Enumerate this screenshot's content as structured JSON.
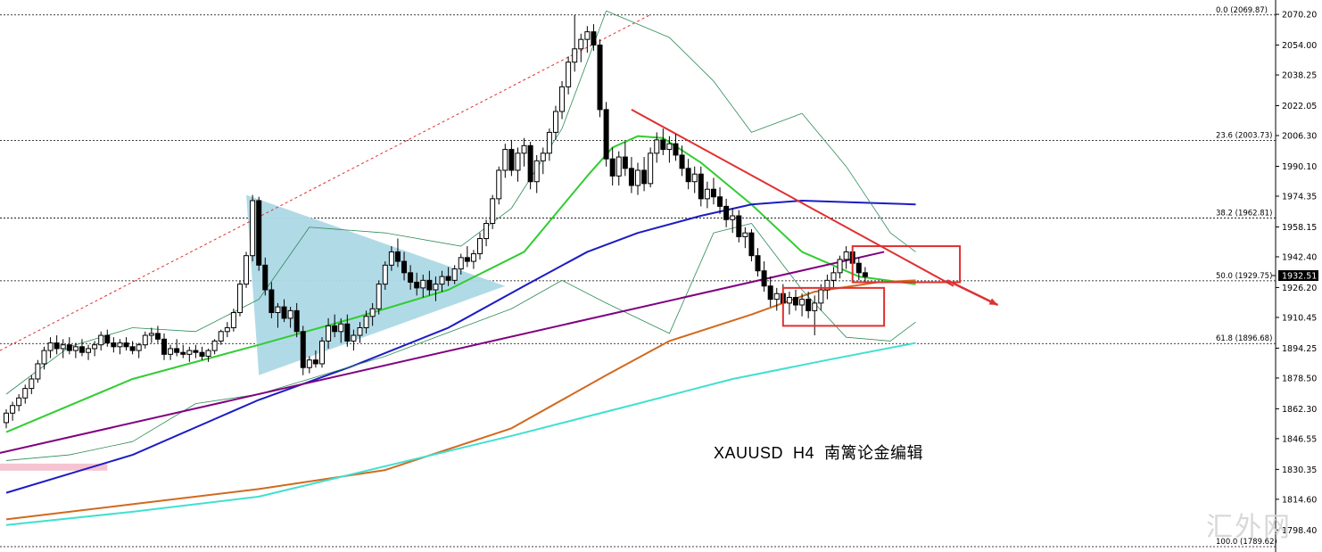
{
  "chart_data": {
    "type": "candlestick",
    "symbol": "XAUUSD",
    "timeframe": "H4",
    "caption": "XAUUSD  H4  南篱论金编辑",
    "watermark": "汇外网",
    "ylim": [
      1789.62,
      2074
    ],
    "y_ticks": [
      "2070.20",
      "2054.00",
      "2038.25",
      "2022.05",
      "2006.30",
      "1990.10",
      "1974.35",
      "1958.15",
      "1942.40",
      "1926.20",
      "1910.45",
      "1894.25",
      "1878.50",
      "1862.30",
      "1846.55",
      "1830.35",
      "1814.60",
      "1798.40"
    ],
    "current_price": "1932.51",
    "fibonacci": [
      {
        "label": "0.0 (2069.87)",
        "price": 2069.87
      },
      {
        "label": "23.6 (2003.73)",
        "price": 2003.73
      },
      {
        "label": "38.2 (1962.81)",
        "price": 1962.81
      },
      {
        "label": "50.0 (1929.75)",
        "price": 1929.75
      },
      {
        "label": "61.8 (1896.68)",
        "price": 1896.68
      },
      {
        "label": "100.0 (1789.62)",
        "price": 1789.62
      }
    ],
    "bar_count": 150,
    "candles": [
      [
        1855,
        1862,
        1852,
        1860
      ],
      [
        1860,
        1866,
        1856,
        1864
      ],
      [
        1864,
        1870,
        1861,
        1868
      ],
      [
        1868,
        1875,
        1865,
        1873
      ],
      [
        1873,
        1880,
        1870,
        1878
      ],
      [
        1878,
        1888,
        1876,
        1886
      ],
      [
        1886,
        1895,
        1883,
        1893
      ],
      [
        1893,
        1900,
        1889,
        1897
      ],
      [
        1897,
        1901,
        1891,
        1894
      ],
      [
        1894,
        1899,
        1889,
        1896
      ],
      [
        1896,
        1900,
        1891,
        1893
      ],
      [
        1893,
        1897,
        1889,
        1895
      ],
      [
        1895,
        1899,
        1890,
        1892
      ],
      [
        1892,
        1896,
        1888,
        1894
      ],
      [
        1894,
        1898,
        1890,
        1896
      ],
      [
        1896,
        1903,
        1893,
        1901
      ],
      [
        1901,
        1904,
        1895,
        1897
      ],
      [
        1897,
        1900,
        1892,
        1895
      ],
      [
        1895,
        1899,
        1891,
        1897
      ],
      [
        1897,
        1900,
        1893,
        1895
      ],
      [
        1895,
        1898,
        1891,
        1893
      ],
      [
        1893,
        1897,
        1889,
        1896
      ],
      [
        1896,
        1903,
        1894,
        1901
      ],
      [
        1901,
        1905,
        1897,
        1902
      ],
      [
        1902,
        1906,
        1897,
        1899
      ],
      [
        1899,
        1902,
        1888,
        1891
      ],
      [
        1891,
        1896,
        1888,
        1894
      ],
      [
        1894,
        1899,
        1890,
        1892
      ],
      [
        1892,
        1896,
        1889,
        1891
      ],
      [
        1891,
        1895,
        1887,
        1893
      ],
      [
        1893,
        1896,
        1889,
        1892
      ],
      [
        1892,
        1895,
        1888,
        1890
      ],
      [
        1890,
        1894,
        1887,
        1893
      ],
      [
        1893,
        1899,
        1891,
        1898
      ],
      [
        1898,
        1904,
        1896,
        1903
      ],
      [
        1903,
        1908,
        1900,
        1905
      ],
      [
        1905,
        1915,
        1903,
        1913
      ],
      [
        1913,
        1930,
        1911,
        1928
      ],
      [
        1928,
        1945,
        1926,
        1943
      ],
      [
        1943,
        1975,
        1940,
        1972
      ],
      [
        1972,
        1974,
        1935,
        1938
      ],
      [
        1938,
        1942,
        1922,
        1925
      ],
      [
        1925,
        1929,
        1910,
        1913
      ],
      [
        1913,
        1918,
        1905,
        1916
      ],
      [
        1916,
        1920,
        1908,
        1910
      ],
      [
        1910,
        1916,
        1905,
        1914
      ],
      [
        1914,
        1918,
        1900,
        1903
      ],
      [
        1903,
        1906,
        1880,
        1884
      ],
      [
        1884,
        1890,
        1881,
        1888
      ],
      [
        1888,
        1893,
        1884,
        1886
      ],
      [
        1886,
        1900,
        1884,
        1898
      ],
      [
        1898,
        1910,
        1894,
        1906
      ],
      [
        1906,
        1912,
        1900,
        1903
      ],
      [
        1903,
        1910,
        1897,
        1907
      ],
      [
        1907,
        1912,
        1895,
        1898
      ],
      [
        1898,
        1904,
        1893,
        1901
      ],
      [
        1901,
        1908,
        1897,
        1905
      ],
      [
        1905,
        1914,
        1902,
        1911
      ],
      [
        1911,
        1918,
        1906,
        1915
      ],
      [
        1915,
        1930,
        1912,
        1928
      ],
      [
        1928,
        1940,
        1925,
        1938
      ],
      [
        1938,
        1948,
        1935,
        1945
      ],
      [
        1945,
        1952,
        1937,
        1940
      ],
      [
        1940,
        1945,
        1930,
        1934
      ],
      [
        1934,
        1938,
        1925,
        1929
      ],
      [
        1929,
        1934,
        1922,
        1926
      ],
      [
        1926,
        1933,
        1921,
        1930
      ],
      [
        1930,
        1935,
        1922,
        1925
      ],
      [
        1925,
        1932,
        1919,
        1928
      ],
      [
        1928,
        1935,
        1924,
        1932
      ],
      [
        1932,
        1937,
        1927,
        1930
      ],
      [
        1930,
        1938,
        1928,
        1936
      ],
      [
        1936,
        1944,
        1933,
        1942
      ],
      [
        1942,
        1948,
        1937,
        1940
      ],
      [
        1940,
        1946,
        1936,
        1944
      ],
      [
        1944,
        1955,
        1941,
        1952
      ],
      [
        1952,
        1962,
        1948,
        1960
      ],
      [
        1960,
        1975,
        1957,
        1973
      ],
      [
        1973,
        1990,
        1970,
        1988
      ],
      [
        1988,
        2002,
        1984,
        1999
      ],
      [
        1999,
        2004,
        1985,
        1988
      ],
      [
        1988,
        2000,
        1982,
        1997
      ],
      [
        1997,
        2005,
        1990,
        2001
      ],
      [
        2001,
        2003,
        1978,
        1982
      ],
      [
        1982,
        1996,
        1976,
        1993
      ],
      [
        1993,
        2000,
        1986,
        1997
      ],
      [
        1997,
        2010,
        1993,
        2008
      ],
      [
        2008,
        2022,
        2004,
        2019
      ],
      [
        2019,
        2035,
        2015,
        2032
      ],
      [
        2032,
        2048,
        2028,
        2045
      ],
      [
        2045,
        2070,
        2040,
        2052
      ],
      [
        2052,
        2060,
        2045,
        2057
      ],
      [
        2057,
        2064,
        2050,
        2061
      ],
      [
        2061,
        2065,
        2051,
        2054
      ],
      [
        2054,
        2057,
        2016,
        2020
      ],
      [
        2020,
        2024,
        1990,
        1994
      ],
      [
        1994,
        2000,
        1980,
        1985
      ],
      [
        1985,
        1998,
        1980,
        1995
      ],
      [
        1995,
        2003,
        1985,
        1989
      ],
      [
        1989,
        1995,
        1976,
        1980
      ],
      [
        1980,
        1992,
        1975,
        1988
      ],
      [
        1988,
        1995,
        1977,
        1981
      ],
      [
        1981,
        2000,
        1979,
        1997
      ],
      [
        1997,
        2008,
        1992,
        2004
      ],
      [
        2004,
        2010,
        1996,
        1999
      ],
      [
        1999,
        2006,
        1992,
        2002
      ],
      [
        2002,
        2007,
        1993,
        1996
      ],
      [
        1996,
        2001,
        1985,
        1989
      ],
      [
        1989,
        1994,
        1978,
        1982
      ],
      [
        1982,
        1990,
        1976,
        1986
      ],
      [
        1986,
        1990,
        1969,
        1973
      ],
      [
        1973,
        1982,
        1968,
        1978
      ],
      [
        1978,
        1984,
        1970,
        1974
      ],
      [
        1974,
        1979,
        1965,
        1969
      ],
      [
        1969,
        1973,
        1958,
        1962
      ],
      [
        1962,
        1968,
        1955,
        1964
      ],
      [
        1964,
        1967,
        1950,
        1953
      ],
      [
        1953,
        1958,
        1947,
        1955
      ],
      [
        1955,
        1957,
        1940,
        1943
      ],
      [
        1943,
        1947,
        1932,
        1935
      ],
      [
        1935,
        1940,
        1924,
        1927
      ],
      [
        1927,
        1932,
        1916,
        1920
      ],
      [
        1920,
        1926,
        1914,
        1923
      ],
      [
        1923,
        1928,
        1916,
        1918
      ],
      [
        1918,
        1924,
        1912,
        1921
      ],
      [
        1921,
        1925,
        1914,
        1917
      ],
      [
        1917,
        1923,
        1911,
        1920
      ],
      [
        1920,
        1924,
        1910,
        1914
      ],
      [
        1914,
        1922,
        1901,
        1918
      ],
      [
        1918,
        1928,
        1914,
        1925
      ],
      [
        1925,
        1933,
        1920,
        1930
      ],
      [
        1930,
        1937,
        1926,
        1934
      ],
      [
        1934,
        1943,
        1931,
        1941
      ],
      [
        1941,
        1948,
        1936,
        1945
      ],
      [
        1945,
        1947,
        1936,
        1939
      ],
      [
        1939,
        1942,
        1930,
        1934
      ],
      [
        1934,
        1937,
        1929,
        1932
      ]
    ],
    "indicators": [
      {
        "name": "MA-fast",
        "color": "#32cd32",
        "points": [
          [
            0,
            1850
          ],
          [
            20,
            1878
          ],
          [
            40,
            1896
          ],
          [
            55,
            1910
          ],
          [
            70,
            1925
          ],
          [
            82,
            1945
          ],
          [
            92,
            1985
          ],
          [
            96,
            2000
          ],
          [
            100,
            2006
          ],
          [
            104,
            2005
          ],
          [
            110,
            1992
          ],
          [
            118,
            1970
          ],
          [
            126,
            1945
          ],
          [
            135,
            1932
          ],
          [
            144,
            1928
          ]
        ]
      },
      {
        "name": "MA-blue",
        "color": "#1c1cc4",
        "points": [
          [
            0,
            1818
          ],
          [
            20,
            1838
          ],
          [
            40,
            1867
          ],
          [
            55,
            1885
          ],
          [
            70,
            1905
          ],
          [
            82,
            1927
          ],
          [
            92,
            1945
          ],
          [
            100,
            1955
          ],
          [
            110,
            1964
          ],
          [
            118,
            1970
          ],
          [
            126,
            1972
          ],
          [
            135,
            1971
          ],
          [
            144,
            1970
          ]
        ]
      },
      {
        "name": "MA-orange",
        "color": "#d2691e",
        "points": [
          [
            0,
            1804
          ],
          [
            20,
            1812
          ],
          [
            40,
            1820
          ],
          [
            60,
            1830
          ],
          [
            80,
            1852
          ],
          [
            95,
            1880
          ],
          [
            105,
            1898
          ],
          [
            118,
            1912
          ],
          [
            128,
            1924
          ],
          [
            138,
            1929
          ],
          [
            144,
            1930
          ]
        ]
      },
      {
        "name": "MA-cyan",
        "color": "#40e0d0",
        "points": [
          [
            0,
            1801
          ],
          [
            20,
            1808
          ],
          [
            40,
            1816
          ],
          [
            60,
            1832
          ],
          [
            80,
            1848
          ],
          [
            100,
            1865
          ],
          [
            115,
            1878
          ],
          [
            130,
            1888
          ],
          [
            144,
            1897
          ]
        ]
      },
      {
        "name": "BB-upper",
        "color": "#2e8b57",
        "points": [
          [
            0,
            1870
          ],
          [
            10,
            1895
          ],
          [
            20,
            1905
          ],
          [
            30,
            1903
          ],
          [
            40,
            1920
          ],
          [
            48,
            1958
          ],
          [
            60,
            1955
          ],
          [
            72,
            1948
          ],
          [
            80,
            1968
          ],
          [
            88,
            2010
          ],
          [
            95,
            2072
          ],
          [
            105,
            2058
          ],
          [
            112,
            2035
          ],
          [
            118,
            2008
          ],
          [
            126,
            2018
          ],
          [
            133,
            1990
          ],
          [
            140,
            1955
          ],
          [
            144,
            1945
          ]
        ]
      },
      {
        "name": "BB-lower",
        "color": "#2e8b57",
        "points": [
          [
            0,
            1835
          ],
          [
            10,
            1838
          ],
          [
            20,
            1845
          ],
          [
            30,
            1865
          ],
          [
            40,
            1870
          ],
          [
            48,
            1878
          ],
          [
            60,
            1890
          ],
          [
            72,
            1905
          ],
          [
            80,
            1915
          ],
          [
            88,
            1930
          ],
          [
            95,
            1918
          ],
          [
            105,
            1902
          ],
          [
            112,
            1955
          ],
          [
            118,
            1960
          ],
          [
            126,
            1925
          ],
          [
            133,
            1900
          ],
          [
            140,
            1898
          ],
          [
            144,
            1908
          ]
        ]
      }
    ],
    "trendlines": [
      {
        "name": "channel-top-dotted",
        "color": "#e03030",
        "dashed": true,
        "from": [
          -1,
          1893
        ],
        "to": [
          102,
          2070
        ]
      },
      {
        "name": "purple-support",
        "color": "#800080",
        "from": [
          -1,
          1839
        ],
        "to": [
          139,
          1945
        ]
      },
      {
        "name": "red-down-trendline",
        "color": "#e03030",
        "from": [
          99,
          2020
        ],
        "to": [
          150,
          1927
        ]
      }
    ],
    "triangle": {
      "color": "#add8e6",
      "points": [
        [
          38,
          1975
        ],
        [
          79,
          1927
        ],
        [
          40,
          1880
        ]
      ]
    },
    "highlight_boxes": [
      {
        "color": "#e03030",
        "x": [
          123,
          139
        ],
        "y": [
          1906,
          1926
        ]
      },
      {
        "color": "#e03030",
        "x": [
          134,
          151
        ],
        "y": [
          1929,
          1948
        ]
      }
    ],
    "highlight_zone": {
      "color": "#f6c4d0",
      "x": [
        0,
        16
      ],
      "y": [
        1830,
        1832
      ]
    },
    "arrow": {
      "color": "#e03030",
      "from": [
        149,
        1930
      ],
      "to": [
        157,
        1917
      ]
    }
  }
}
